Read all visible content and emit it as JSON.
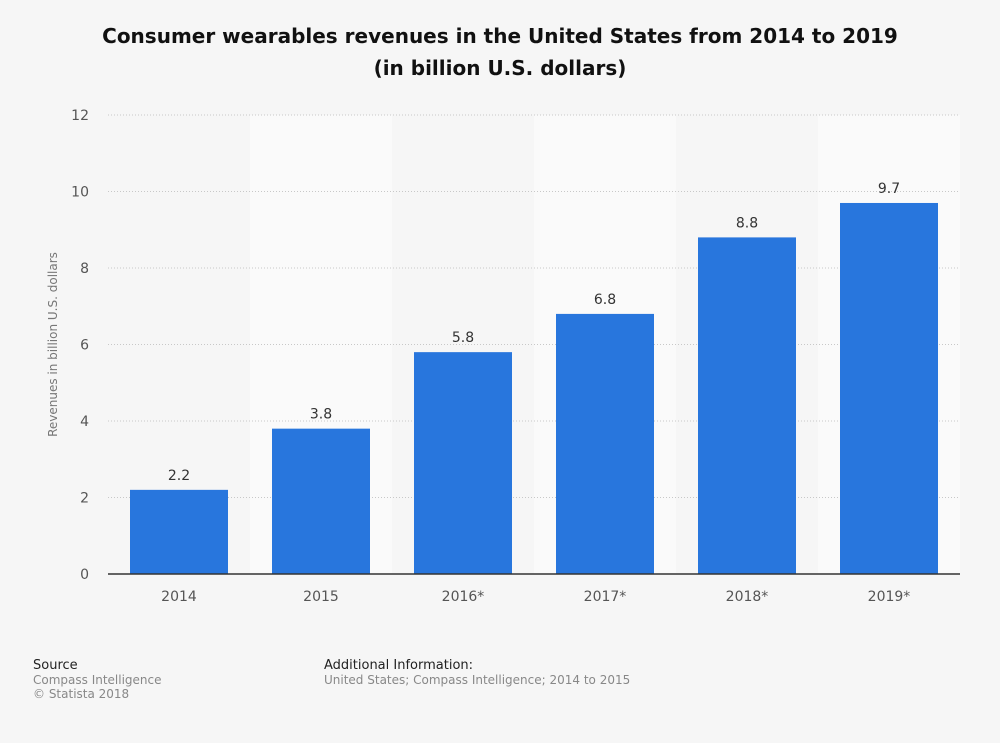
{
  "chart_data": {
    "type": "bar",
    "title": "Consumer wearables revenues in the United States from 2014 to 2019",
    "subtitle": "(in billion U.S. dollars)",
    "categories": [
      "2014",
      "2015",
      "2016*",
      "2017*",
      "2018*",
      "2019*"
    ],
    "values": [
      2.2,
      3.8,
      5.8,
      6.8,
      8.8,
      9.7
    ],
    "data_labels": [
      "2.2",
      "3.8",
      "5.8",
      "6.8",
      "8.8",
      "9.7"
    ],
    "xlabel": "",
    "ylabel": "Revenues in billion U.S. dollars",
    "ylim": [
      0,
      12
    ],
    "yticks": [
      "0",
      "2",
      "4",
      "6",
      "8",
      "10",
      "12"
    ],
    "grid": true,
    "bar_color": "#2876dd"
  },
  "footer": {
    "source_heading": "Source",
    "source_lines": [
      "Compass Intelligence",
      "© Statista 2018"
    ],
    "info_heading": "Additional Information:",
    "info_text": "United States; Compass Intelligence; 2014 to 2015"
  }
}
